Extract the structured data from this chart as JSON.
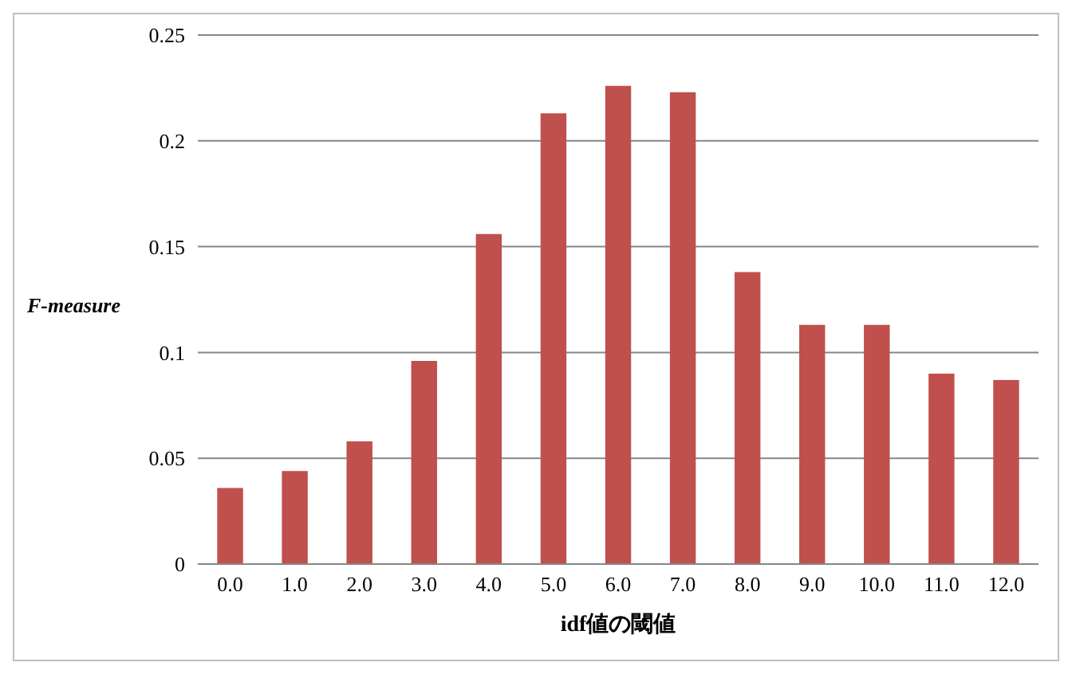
{
  "chart_data": {
    "type": "bar",
    "xlabel": "idf値の閾値",
    "ylabel": "F-measure",
    "categories": [
      "0.0",
      "1.0",
      "2.0",
      "3.0",
      "4.0",
      "5.0",
      "6.0",
      "7.0",
      "8.0",
      "9.0",
      "10.0",
      "11.0",
      "12.0"
    ],
    "values": [
      0.036,
      0.044,
      0.058,
      0.096,
      0.156,
      0.213,
      0.226,
      0.223,
      0.138,
      0.113,
      0.113,
      0.09,
      0.087
    ],
    "color": "#c0504d",
    "ylim": [
      0,
      0.25
    ],
    "yticks": [
      0,
      0.05,
      0.1,
      0.15,
      0.2,
      0.25
    ],
    "grid": "y",
    "legend": false
  }
}
